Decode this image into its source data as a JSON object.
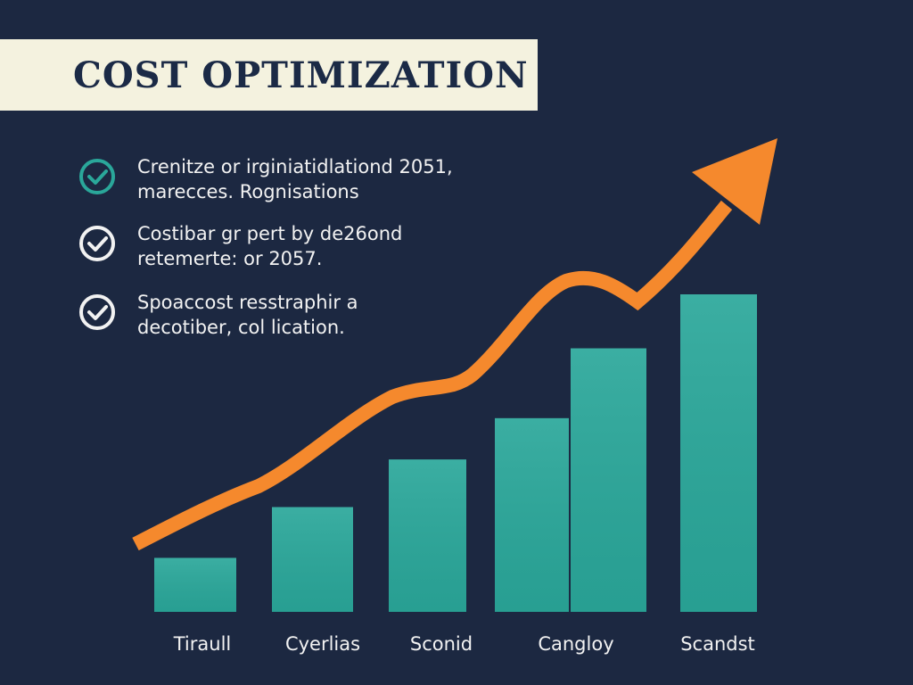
{
  "chart_data": {
    "type": "bar",
    "title": "COST OPTIMIZATION",
    "bullets": [
      [
        "Crenitze or irginiatidlationd 2051,",
        "marecces. Rognisations"
      ],
      [
        "Costibar gr pert by de26ond",
        "retemerte: or 2057."
      ],
      [
        "Spoaccost resstraphir a",
        "decotiber, col lication."
      ]
    ],
    "categories": [
      "Tiraull",
      "Cyerlias",
      "Sconid",
      "Cangloy",
      null,
      "Scandst"
    ],
    "values": [
      17,
      33,
      48,
      61,
      83,
      100
    ],
    "color": "#2aa79a",
    "ylim": [
      0,
      100
    ]
  }
}
